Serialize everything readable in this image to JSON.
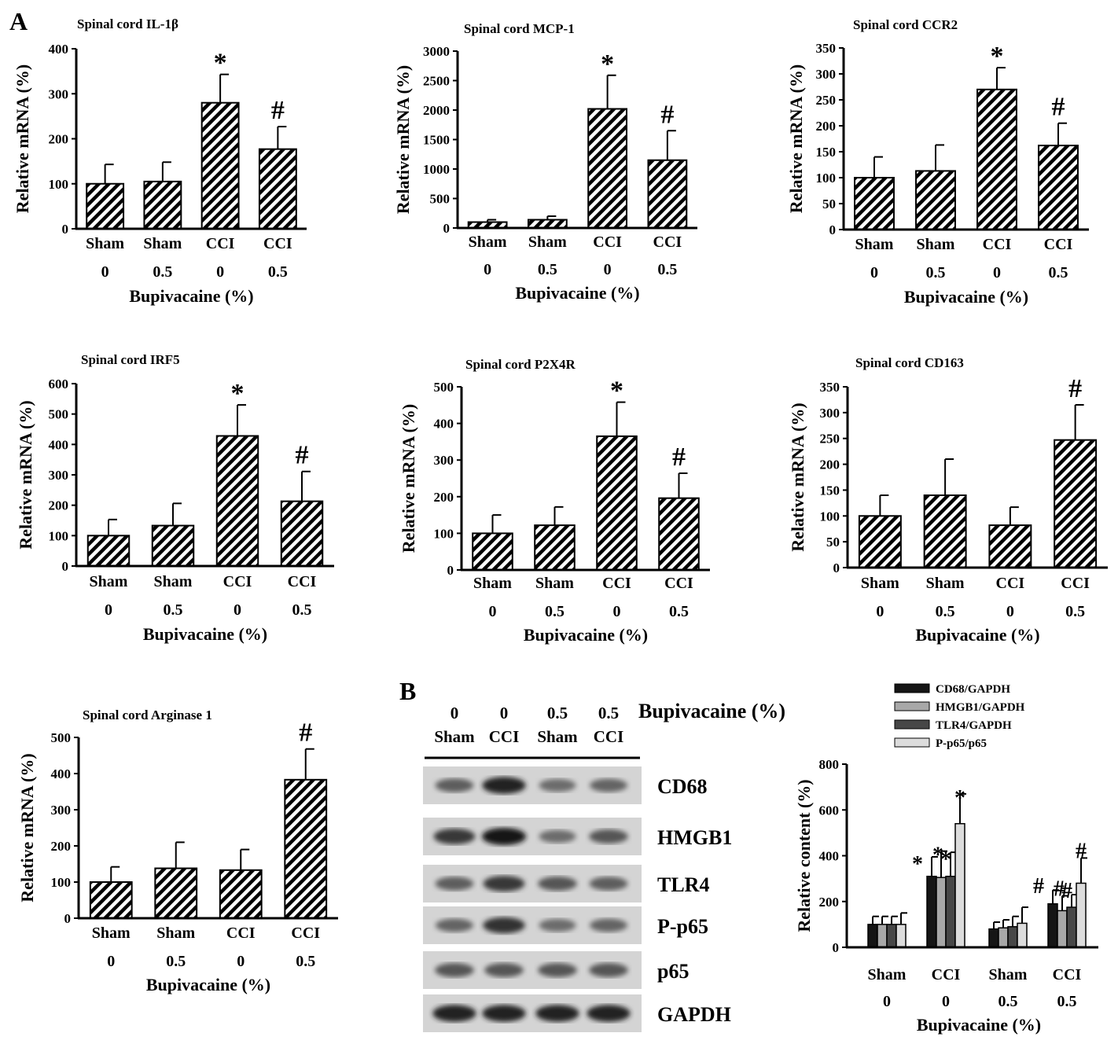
{
  "panel_labels": {
    "a": "A",
    "b": "B"
  },
  "colors": {
    "ink": "#000000",
    "bar_fill": "#ffffff",
    "blot_bg": "#d4d4d4",
    "legend": [
      "#151515",
      "#a8a8a8",
      "#474747",
      "#dcdcdc"
    ]
  },
  "chart_data": [
    {
      "type": "bar",
      "title": "Spinal cord IL-1β",
      "ylabel": "Relative mRNA (%)",
      "xlabel": "Bupivacaine (%)",
      "categories": [
        "Sham",
        "Sham",
        "CCI",
        "CCI"
      ],
      "doses": [
        "0",
        "0.5",
        "0",
        "0.5"
      ],
      "values": [
        100,
        105,
        280,
        177
      ],
      "errors": [
        43,
        43,
        63,
        50
      ],
      "ylim": [
        0,
        400
      ],
      "yticks": [
        "0",
        "100",
        "200",
        "300",
        "400"
      ],
      "markers": [
        "",
        "",
        "*",
        "#"
      ],
      "fill": "hatched"
    },
    {
      "type": "bar",
      "title": "Spinal cord MCP-1",
      "ylabel": "Relative mRNA (%)",
      "xlabel": "Bupivacaine (%)",
      "categories": [
        "Sham",
        "Sham",
        "CCI",
        "CCI"
      ],
      "doses": [
        "0",
        "0.5",
        "0",
        "0.5"
      ],
      "values": [
        100,
        140,
        2020,
        1150
      ],
      "errors": [
        40,
        60,
        570,
        500
      ],
      "ylim": [
        0,
        3000
      ],
      "yticks": [
        "0",
        "500",
        "1000",
        "1500",
        "2000",
        "2500",
        "3000"
      ],
      "markers": [
        "",
        "",
        "*",
        "#"
      ],
      "fill": "hatched"
    },
    {
      "type": "bar",
      "title": "Spinal cord CCR2",
      "ylabel": "Relative mRNA (%)",
      "xlabel": "Bupivacaine (%)",
      "categories": [
        "Sham",
        "Sham",
        "CCI",
        "CCI"
      ],
      "doses": [
        "0",
        "0.5",
        "0",
        "0.5"
      ],
      "values": [
        100,
        113,
        270,
        162
      ],
      "errors": [
        40,
        50,
        42,
        43
      ],
      "ylim": [
        0,
        350
      ],
      "yticks": [
        "0",
        "50",
        "100",
        "150",
        "200",
        "250",
        "300",
        "350"
      ],
      "markers": [
        "",
        "",
        "*",
        "#"
      ],
      "fill": "hatched"
    },
    {
      "type": "bar",
      "title": "Spinal cord IRF5",
      "ylabel": "Relative mRNA (%)",
      "xlabel": "Bupivacaine (%)",
      "categories": [
        "Sham",
        "Sham",
        "CCI",
        "CCI"
      ],
      "doses": [
        "0",
        "0.5",
        "0",
        "0.5"
      ],
      "values": [
        100,
        133,
        428,
        213
      ],
      "errors": [
        53,
        73,
        102,
        98
      ],
      "ylim": [
        0,
        600
      ],
      "yticks": [
        "0",
        "100",
        "200",
        "300",
        "400",
        "500",
        "600"
      ],
      "markers": [
        "",
        "",
        "*",
        "#"
      ],
      "fill": "hatched"
    },
    {
      "type": "bar",
      "title": "Spinal cord P2X4R",
      "ylabel": "Relative mRNA (%)",
      "xlabel": "Bupivacaine (%)",
      "categories": [
        "Sham",
        "Sham",
        "CCI",
        "CCI"
      ],
      "doses": [
        "0",
        "0.5",
        "0",
        "0.5"
      ],
      "values": [
        100,
        122,
        365,
        196
      ],
      "errors": [
        50,
        50,
        93,
        68
      ],
      "ylim": [
        0,
        500
      ],
      "yticks": [
        "0",
        "100",
        "200",
        "300",
        "400",
        "500"
      ],
      "markers": [
        "",
        "",
        "*",
        "#"
      ],
      "fill": "hatched"
    },
    {
      "type": "bar",
      "title": "Spinal cord CD163",
      "ylabel": "Relative mRNA (%)",
      "xlabel": "Bupivacaine (%)",
      "categories": [
        "Sham",
        "Sham",
        "CCI",
        "CCI"
      ],
      "doses": [
        "0",
        "0.5",
        "0",
        "0.5"
      ],
      "values": [
        100,
        140,
        82,
        247
      ],
      "errors": [
        40,
        70,
        35,
        68
      ],
      "ylim": [
        0,
        350
      ],
      "yticks": [
        "0",
        "50",
        "100",
        "150",
        "200",
        "250",
        "300",
        "350"
      ],
      "markers": [
        "",
        "",
        "",
        "#"
      ],
      "fill": "hatched"
    },
    {
      "type": "bar",
      "title": "Spinal cord Arginase 1",
      "ylabel": "Relative mRNA (%)",
      "xlabel": "Bupivacaine (%)",
      "categories": [
        "Sham",
        "Sham",
        "CCI",
        "CCI"
      ],
      "doses": [
        "0",
        "0.5",
        "0",
        "0.5"
      ],
      "values": [
        100,
        138,
        133,
        383
      ],
      "errors": [
        42,
        72,
        57,
        85
      ],
      "ylim": [
        0,
        500
      ],
      "yticks": [
        "0",
        "100",
        "200",
        "300",
        "400",
        "500"
      ],
      "markers": [
        "",
        "",
        "",
        "#"
      ],
      "fill": "hatched"
    },
    {
      "type": "bar",
      "title": "",
      "ylabel": "Relative content (%)",
      "xlabel": "Bupivacaine (%)",
      "categories": [
        "Sham",
        "CCI",
        "Sham",
        "CCI"
      ],
      "doses": [
        "0",
        "0",
        "0.5",
        "0.5"
      ],
      "series": [
        {
          "name": "CD68/GAPDH",
          "values": [
            100,
            310,
            80,
            190
          ],
          "errors": [
            35,
            85,
            30,
            60
          ],
          "markers": [
            "",
            "*",
            "",
            "#"
          ]
        },
        {
          "name": "HMGB1/GAPDH",
          "values": [
            100,
            305,
            85,
            160
          ],
          "errors": [
            35,
            115,
            35,
            65
          ],
          "markers": [
            "",
            "*",
            "",
            "#"
          ]
        },
        {
          "name": "TLR4/GAPDH",
          "values": [
            100,
            310,
            90,
            175
          ],
          "errors": [
            35,
            105,
            45,
            55
          ],
          "markers": [
            "",
            "*",
            "",
            "#"
          ]
        },
        {
          "name": "P-p65/p65",
          "values": [
            100,
            540,
            105,
            280
          ],
          "errors": [
            50,
            130,
            70,
            110
          ],
          "markers": [
            "",
            "*",
            "",
            "#"
          ]
        }
      ],
      "ylim": [
        0,
        800
      ],
      "yticks": [
        "0",
        "200",
        "400",
        "600",
        "800"
      ],
      "legend_position": "top"
    }
  ],
  "western_blot": {
    "lanes": [
      {
        "dose": "0",
        "group": "Sham"
      },
      {
        "dose": "0",
        "group": "CCI"
      },
      {
        "dose": "0.5",
        "group": "Sham"
      },
      {
        "dose": "0.5",
        "group": "CCI"
      }
    ],
    "header_label": "Bupivacaine (%)",
    "bands": [
      {
        "label": "CD68",
        "intensities": [
          0.55,
          0.95,
          0.45,
          0.5
        ]
      },
      {
        "label": "HMGB1",
        "intensities": [
          0.8,
          1.0,
          0.45,
          0.6
        ]
      },
      {
        "label": "TLR4",
        "intensities": [
          0.55,
          0.8,
          0.6,
          0.55
        ]
      },
      {
        "label": "P-p65",
        "intensities": [
          0.5,
          0.85,
          0.45,
          0.5
        ]
      },
      {
        "label": "p65",
        "intensities": [
          0.6,
          0.6,
          0.6,
          0.6
        ]
      },
      {
        "label": "GAPDH",
        "intensities": [
          0.95,
          0.95,
          0.95,
          0.95
        ]
      }
    ]
  }
}
